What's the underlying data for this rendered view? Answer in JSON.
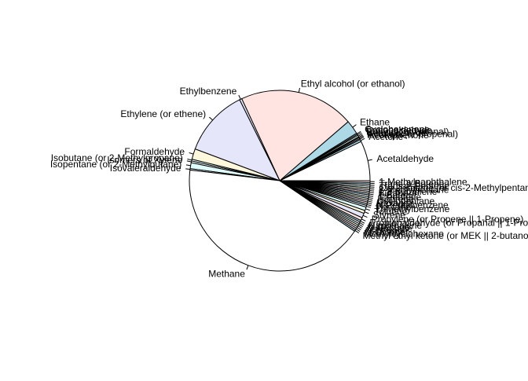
{
  "chart_data": {
    "type": "pie",
    "title": "",
    "legend": "none",
    "slice_labels": "outside with leader lines",
    "start_angle_deg": 0,
    "direction": "counterclockwise",
    "slices": [
      {
        "label": "Acetaldehyde",
        "value": 34,
        "color": "#ffffff"
      },
      {
        "label": "Acetone",
        "value": 1.8,
        "color": "#add8e6"
      },
      {
        "label": "Acetophenone",
        "value": 0.9,
        "color": "#ffe4e1"
      },
      {
        "label": "Acrolein (or propenal)",
        "value": 1.0,
        "color": "#e6e6fa"
      },
      {
        "label": "Benzaldehyde",
        "value": 0.8,
        "color": "#fff8dc"
      },
      {
        "label": "Butanal (or butanal)",
        "value": 1.4,
        "color": "#e0ffff"
      },
      {
        "label": "Crotonaldehyde",
        "value": 1.0,
        "color": "#ffffff"
      },
      {
        "label": "Cyclohexanone",
        "value": 1.0,
        "color": "#add8e6"
      },
      {
        "label": "Ethane",
        "value": 12,
        "color": "#add8e6"
      },
      {
        "label": "Ethyl alcohol (or ethanol)",
        "value": 98,
        "color": "#ffe4e1"
      },
      {
        "label": "Ethylbenzene",
        "value": 2.0,
        "color": "#e6e6fa"
      },
      {
        "label": "Ethylene (or ethene)",
        "value": 57,
        "color": "#e6e6fa"
      },
      {
        "label": "Formaldehyde",
        "value": 9,
        "color": "#fff8dc"
      },
      {
        "label": "Isobutane (or 2-Methylpropane)",
        "value": 1.5,
        "color": "#e0ffff"
      },
      {
        "label": "Isomers of Xylene",
        "value": 1.5,
        "color": "#ffffff"
      },
      {
        "label": "Isopentane (or 2-Methylbutane)",
        "value": 5,
        "color": "#e0ffff"
      },
      {
        "label": "Isovaleraldehyde",
        "value": 1.2,
        "color": "#ffffff"
      },
      {
        "label": "Methane",
        "value": 202,
        "color": "#ffffff"
      },
      {
        "label": "Methyl ethyl ketone (or MEK || 2-butanone)",
        "value": 1.5,
        "color": "#add8e6"
      },
      {
        "label": "Methylcyclohexane",
        "value": 1.5,
        "color": "#ffe4e1"
      },
      {
        "label": "N-Octane",
        "value": 1.5,
        "color": "#e6e6fa"
      },
      {
        "label": "N-Hexane",
        "value": 1.5,
        "color": "#fff8dc"
      },
      {
        "label": "N-Heptane",
        "value": 1.5,
        "color": "#e0ffff"
      },
      {
        "label": "N-Decane",
        "value": 1.5,
        "color": "#ffffff"
      },
      {
        "label": "Naphthalene",
        "value": 1.5,
        "color": "#add8e6"
      },
      {
        "label": "Propionaldehyde (or Propanal || 1-Propanone)",
        "value": 2.5,
        "color": "#ffe4e1"
      },
      {
        "label": "Propylene (or Propene || 1-Propene)",
        "value": 4,
        "color": "#e6e6fa"
      },
      {
        "label": "Styrene",
        "value": 2.5,
        "color": "#fff8dc"
      },
      {
        "label": "Toluene",
        "value": 3,
        "color": "#e0ffff"
      },
      {
        "label": "Trimethylbenzene",
        "value": 1.5,
        "color": "#ffffff"
      },
      {
        "label": "Pentane",
        "value": 1.5,
        "color": "#add8e6"
      },
      {
        "label": "N-Pentylbenzene",
        "value": 1.5,
        "color": "#ffe4e1"
      },
      {
        "label": "Hexanal",
        "value": 1.5,
        "color": "#e6e6fa"
      },
      {
        "label": "Cyclopentane",
        "value": 1.5,
        "color": "#fff8dc"
      },
      {
        "label": "Isoprene",
        "value": 1.5,
        "color": "#e0ffff"
      },
      {
        "label": "1-Pentene",
        "value": 1.5,
        "color": "#ffffff"
      },
      {
        "label": "1-Butene",
        "value": 1.5,
        "color": "#add8e6"
      },
      {
        "label": "Butane",
        "value": 1.5,
        "color": "#ffe4e1"
      },
      {
        "label": "1,3-Butadiene",
        "value": 1.5,
        "color": "#e6e6fa"
      },
      {
        "label": "2-Methylpentane",
        "value": 1.5,
        "color": "#fff8dc"
      },
      {
        "label": "Cis-2-Butene (or cis-2-Methylpentane)",
        "value": 1.5,
        "color": "#e0ffff"
      },
      {
        "label": "Trans-2-Pentene",
        "value": 1.5,
        "color": "#ffffff"
      },
      {
        "label": "Trans-2-Butene",
        "value": 1.5,
        "color": "#add8e6"
      },
      {
        "label": "1-Methylnaphthalene",
        "value": 1.5,
        "color": "#ffe4e1"
      }
    ]
  }
}
